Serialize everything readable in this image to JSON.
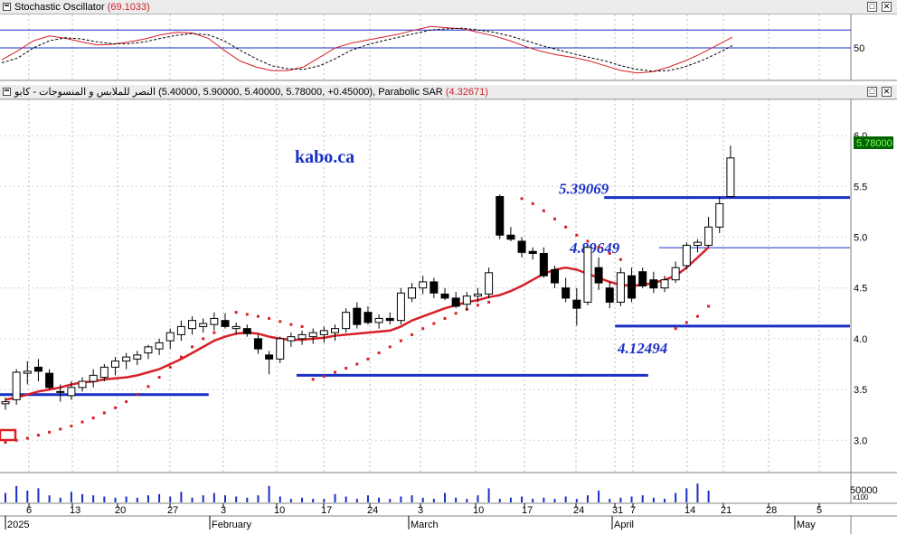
{
  "stoch_header": {
    "title": "Stochastic Oscillator",
    "value": "(69.1033)"
  },
  "price_header": {
    "name": "النصر للملابس و المنسوجات - كابو",
    "ohlc": "(5.40000, 5.90000, 5.40000, 5.78000, +0.45000),",
    "indicator": "Parabolic SAR",
    "indicator_value": "(4.32671)"
  },
  "watermark": "kabo.ca",
  "price_badge": "5.78000",
  "volume_axis": {
    "label": "50000",
    "multiplier": "x100"
  },
  "window_buttons": {
    "restore": "□",
    "close": "✕"
  },
  "colors": {
    "candle_outline": "#000000",
    "ma": "#d81f26",
    "sar": "#d81f26",
    "level": "#1a2fc4",
    "badge_bg": "#006400",
    "badge_fg": "#7dff5a"
  },
  "chart_data": [
    {
      "type": "line",
      "title": "Stochastic Oscillator",
      "levels": [
        80,
        50
      ],
      "y_tick_labels": [
        "50"
      ],
      "series": [
        {
          "name": "%K",
          "values": [
            30,
            45,
            62,
            70,
            66,
            60,
            55,
            56,
            60,
            65,
            72,
            76,
            75,
            66,
            46,
            28,
            18,
            12,
            12,
            18,
            34,
            50,
            58,
            63,
            68,
            73,
            80,
            86,
            84,
            82,
            76,
            70,
            62,
            52,
            44,
            38,
            34,
            28,
            20,
            12,
            8,
            10,
            18,
            28,
            40,
            54,
            68
          ]
        },
        {
          "name": "%D",
          "values": [
            25,
            33,
            50,
            62,
            67,
            65,
            60,
            57,
            57,
            60,
            66,
            71,
            74,
            72,
            62,
            46,
            32,
            20,
            15,
            14,
            20,
            32,
            46,
            55,
            62,
            68,
            74,
            80,
            82,
            83,
            80,
            76,
            70,
            62,
            54,
            47,
            40,
            34,
            28,
            20,
            14,
            11,
            12,
            18,
            28,
            40,
            54
          ]
        }
      ]
    },
    {
      "type": "candlestick",
      "title": "النصر للملابس و المنسوجات - كابو",
      "y_range": [
        2.62,
        6.25
      ],
      "y_ticks": [
        3.0,
        3.5,
        4.0,
        4.5,
        5.0,
        5.5,
        6.0
      ],
      "x_tick_labels": [
        "6",
        "13",
        "20",
        "27",
        "3",
        "10",
        "17",
        "24",
        "3",
        "10",
        "17",
        "24",
        "31",
        "7",
        "14",
        "21",
        "28",
        "5"
      ],
      "month_labels": [
        "2025",
        "February",
        "March",
        "April",
        "May"
      ],
      "candles": [
        {
          "o": 3.36,
          "h": 3.42,
          "l": 3.3,
          "c": 3.38
        },
        {
          "o": 3.4,
          "h": 3.7,
          "l": 3.35,
          "c": 3.67
        },
        {
          "o": 3.66,
          "h": 3.78,
          "l": 3.55,
          "c": 3.68
        },
        {
          "o": 3.72,
          "h": 3.8,
          "l": 3.58,
          "c": 3.68
        },
        {
          "o": 3.66,
          "h": 3.7,
          "l": 3.5,
          "c": 3.52
        },
        {
          "o": 3.48,
          "h": 3.55,
          "l": 3.38,
          "c": 3.48
        },
        {
          "o": 3.44,
          "h": 3.58,
          "l": 3.4,
          "c": 3.52
        },
        {
          "o": 3.52,
          "h": 3.62,
          "l": 3.48,
          "c": 3.58
        },
        {
          "o": 3.58,
          "h": 3.7,
          "l": 3.52,
          "c": 3.64
        },
        {
          "o": 3.62,
          "h": 3.75,
          "l": 3.58,
          "c": 3.72
        },
        {
          "o": 3.72,
          "h": 3.82,
          "l": 3.64,
          "c": 3.78
        },
        {
          "o": 3.78,
          "h": 3.86,
          "l": 3.7,
          "c": 3.82
        },
        {
          "o": 3.8,
          "h": 3.88,
          "l": 3.74,
          "c": 3.84
        },
        {
          "o": 3.86,
          "h": 3.94,
          "l": 3.8,
          "c": 3.92
        },
        {
          "o": 3.9,
          "h": 4.0,
          "l": 3.84,
          "c": 3.96
        },
        {
          "o": 3.98,
          "h": 4.1,
          "l": 3.9,
          "c": 4.06
        },
        {
          "o": 4.04,
          "h": 4.18,
          "l": 3.98,
          "c": 4.12
        },
        {
          "o": 4.1,
          "h": 4.22,
          "l": 4.04,
          "c": 4.18
        },
        {
          "o": 4.12,
          "h": 4.2,
          "l": 4.06,
          "c": 4.15
        },
        {
          "o": 4.14,
          "h": 4.26,
          "l": 4.08,
          "c": 4.2
        },
        {
          "o": 4.18,
          "h": 4.25,
          "l": 4.1,
          "c": 4.12
        },
        {
          "o": 4.1,
          "h": 4.16,
          "l": 4.04,
          "c": 4.12
        },
        {
          "o": 4.1,
          "h": 4.14,
          "l": 4.02,
          "c": 4.05
        },
        {
          "o": 4.0,
          "h": 4.04,
          "l": 3.85,
          "c": 3.9
        },
        {
          "o": 3.84,
          "h": 3.88,
          "l": 3.65,
          "c": 3.8
        },
        {
          "o": 3.8,
          "h": 4.02,
          "l": 3.76,
          "c": 4.0
        },
        {
          "o": 3.98,
          "h": 4.06,
          "l": 3.92,
          "c": 4.02
        },
        {
          "o": 4.0,
          "h": 4.08,
          "l": 3.94,
          "c": 4.04
        },
        {
          "o": 4.02,
          "h": 4.1,
          "l": 3.95,
          "c": 4.06
        },
        {
          "o": 4.04,
          "h": 4.12,
          "l": 3.96,
          "c": 4.08
        },
        {
          "o": 4.06,
          "h": 4.14,
          "l": 3.98,
          "c": 4.1
        },
        {
          "o": 4.1,
          "h": 4.3,
          "l": 4.06,
          "c": 4.26
        },
        {
          "o": 4.3,
          "h": 4.36,
          "l": 4.1,
          "c": 4.14
        },
        {
          "o": 4.26,
          "h": 4.32,
          "l": 4.14,
          "c": 4.16
        },
        {
          "o": 4.16,
          "h": 4.24,
          "l": 4.1,
          "c": 4.2
        },
        {
          "o": 4.2,
          "h": 4.26,
          "l": 4.14,
          "c": 4.18
        },
        {
          "o": 4.18,
          "h": 4.5,
          "l": 4.14,
          "c": 4.45
        },
        {
          "o": 4.4,
          "h": 4.55,
          "l": 4.36,
          "c": 4.5
        },
        {
          "o": 4.5,
          "h": 4.62,
          "l": 4.44,
          "c": 4.56
        },
        {
          "o": 4.56,
          "h": 4.6,
          "l": 4.4,
          "c": 4.45
        },
        {
          "o": 4.44,
          "h": 4.5,
          "l": 4.38,
          "c": 4.4
        },
        {
          "o": 4.4,
          "h": 4.46,
          "l": 4.3,
          "c": 4.32
        },
        {
          "o": 4.34,
          "h": 4.46,
          "l": 4.28,
          "c": 4.42
        },
        {
          "o": 4.42,
          "h": 4.5,
          "l": 4.36,
          "c": 4.44
        },
        {
          "o": 4.44,
          "h": 4.7,
          "l": 4.4,
          "c": 4.65
        },
        {
          "o": 5.4,
          "h": 5.42,
          "l": 4.98,
          "c": 5.02
        },
        {
          "o": 5.02,
          "h": 5.1,
          "l": 4.96,
          "c": 4.98
        },
        {
          "o": 4.96,
          "h": 5.0,
          "l": 4.8,
          "c": 4.85
        },
        {
          "o": 4.86,
          "h": 4.9,
          "l": 4.78,
          "c": 4.84
        },
        {
          "o": 4.84,
          "h": 4.9,
          "l": 4.6,
          "c": 4.62
        },
        {
          "o": 4.68,
          "h": 4.72,
          "l": 4.5,
          "c": 4.55
        },
        {
          "o": 4.5,
          "h": 4.6,
          "l": 4.36,
          "c": 4.4
        },
        {
          "o": 4.38,
          "h": 4.5,
          "l": 4.13,
          "c": 4.3
        },
        {
          "o": 4.36,
          "h": 4.9,
          "l": 4.33,
          "c": 4.9
        },
        {
          "o": 4.7,
          "h": 4.8,
          "l": 4.48,
          "c": 4.55
        },
        {
          "o": 4.5,
          "h": 4.56,
          "l": 4.3,
          "c": 4.36
        },
        {
          "o": 4.36,
          "h": 4.7,
          "l": 4.32,
          "c": 4.65
        },
        {
          "o": 4.62,
          "h": 4.7,
          "l": 4.36,
          "c": 4.4
        },
        {
          "o": 4.66,
          "h": 4.7,
          "l": 4.5,
          "c": 4.52
        },
        {
          "o": 4.58,
          "h": 4.66,
          "l": 4.45,
          "c": 4.5
        },
        {
          "o": 4.5,
          "h": 4.62,
          "l": 4.46,
          "c": 4.58
        },
        {
          "o": 4.58,
          "h": 4.76,
          "l": 4.55,
          "c": 4.7
        },
        {
          "o": 4.72,
          "h": 4.95,
          "l": 4.68,
          "c": 4.92
        },
        {
          "o": 4.92,
          "h": 4.98,
          "l": 4.85,
          "c": 4.95
        },
        {
          "o": 4.92,
          "h": 5.2,
          "l": 4.9,
          "c": 5.1
        },
        {
          "o": 5.1,
          "h": 5.4,
          "l": 5.04,
          "c": 5.33
        },
        {
          "o": 5.4,
          "h": 5.9,
          "l": 5.4,
          "c": 5.78
        }
      ],
      "moving_average": [
        3.4,
        3.42,
        3.45,
        3.48,
        3.5,
        3.52,
        3.55,
        3.57,
        3.58,
        3.6,
        3.61,
        3.62,
        3.64,
        3.67,
        3.7,
        3.75,
        3.8,
        3.86,
        3.92,
        3.98,
        4.02,
        4.05,
        4.06,
        4.05,
        4.02,
        4.0,
        3.99,
        3.99,
        4.0,
        4.01,
        4.03,
        4.04,
        4.05,
        4.06,
        4.07,
        4.08,
        4.12,
        4.18,
        4.22,
        4.26,
        4.3,
        4.33,
        4.36,
        4.38,
        4.41,
        4.43,
        4.47,
        4.52,
        4.58,
        4.64,
        4.68,
        4.7,
        4.68,
        4.64,
        4.6,
        4.56,
        4.53,
        4.52,
        4.53,
        4.55,
        4.58,
        4.62,
        4.7,
        4.8,
        4.9
      ],
      "parabolic_sar": [
        {
          "i": 0,
          "v": 2.98
        },
        {
          "i": 1,
          "v": 3.0
        },
        {
          "i": 2,
          "v": 3.02
        },
        {
          "i": 3,
          "v": 3.05
        },
        {
          "i": 4,
          "v": 3.08
        },
        {
          "i": 5,
          "v": 3.11
        },
        {
          "i": 6,
          "v": 3.14
        },
        {
          "i": 7,
          "v": 3.18
        },
        {
          "i": 8,
          "v": 3.22
        },
        {
          "i": 9,
          "v": 3.27
        },
        {
          "i": 10,
          "v": 3.32
        },
        {
          "i": 11,
          "v": 3.38
        },
        {
          "i": 12,
          "v": 3.45
        },
        {
          "i": 13,
          "v": 3.53
        },
        {
          "i": 14,
          "v": 3.62
        },
        {
          "i": 15,
          "v": 3.72
        },
        {
          "i": 16,
          "v": 3.82
        },
        {
          "i": 17,
          "v": 3.92
        },
        {
          "i": 18,
          "v": 4.0
        },
        {
          "i": 19,
          "v": 4.06
        },
        {
          "i": 21,
          "v": 4.26
        },
        {
          "i": 22,
          "v": 4.24
        },
        {
          "i": 23,
          "v": 4.22
        },
        {
          "i": 24,
          "v": 4.2
        },
        {
          "i": 25,
          "v": 4.17
        },
        {
          "i": 26,
          "v": 4.14
        },
        {
          "i": 27,
          "v": 4.12
        },
        {
          "i": 28,
          "v": 3.6
        },
        {
          "i": 29,
          "v": 3.63
        },
        {
          "i": 30,
          "v": 3.67
        },
        {
          "i": 31,
          "v": 3.71
        },
        {
          "i": 32,
          "v": 3.75
        },
        {
          "i": 33,
          "v": 3.8
        },
        {
          "i": 34,
          "v": 3.86
        },
        {
          "i": 35,
          "v": 3.92
        },
        {
          "i": 36,
          "v": 3.98
        },
        {
          "i": 37,
          "v": 4.04
        },
        {
          "i": 38,
          "v": 4.1
        },
        {
          "i": 39,
          "v": 4.15
        },
        {
          "i": 40,
          "v": 4.2
        },
        {
          "i": 41,
          "v": 4.25
        },
        {
          "i": 42,
          "v": 4.29
        },
        {
          "i": 43,
          "v": 4.33
        },
        {
          "i": 44,
          "v": 4.36
        },
        {
          "i": 47,
          "v": 5.38
        },
        {
          "i": 48,
          "v": 5.33
        },
        {
          "i": 49,
          "v": 5.26
        },
        {
          "i": 50,
          "v": 5.18
        },
        {
          "i": 51,
          "v": 5.1
        },
        {
          "i": 52,
          "v": 5.02
        },
        {
          "i": 53,
          "v": 4.96
        },
        {
          "i": 54,
          "v": 4.9
        },
        {
          "i": 55,
          "v": 4.84
        },
        {
          "i": 56,
          "v": 4.78
        },
        {
          "i": 61,
          "v": 4.1
        },
        {
          "i": 62,
          "v": 4.16
        },
        {
          "i": 63,
          "v": 4.22
        },
        {
          "i": 64,
          "v": 4.32
        }
      ],
      "levels": [
        {
          "value": 3.45,
          "i0": -0.5,
          "i1": 18.5,
          "label": ""
        },
        {
          "value": 3.64,
          "i0": 26.5,
          "i1": 58.5,
          "label": ""
        },
        {
          "value": 5.39069,
          "i0": 54.5,
          "i1": 86,
          "label": "5.39069"
        },
        {
          "value": 4.89649,
          "i0": 59.5,
          "i1": 79,
          "label": "4.89649"
        },
        {
          "value": 4.12494,
          "i0": 55.5,
          "i1": 86.5,
          "label": "4.12494"
        }
      ]
    },
    {
      "type": "bar",
      "title": "Volume",
      "values": [
        8,
        14,
        10,
        12,
        6,
        4,
        9,
        7,
        6,
        5,
        4,
        5,
        4,
        6,
        7,
        5,
        9,
        4,
        6,
        8,
        6,
        5,
        4,
        6,
        14,
        5,
        3,
        4,
        3,
        3,
        7,
        5,
        3,
        6,
        4,
        3,
        5,
        6,
        4,
        3,
        8,
        4,
        3,
        6,
        12,
        3,
        4,
        5,
        3,
        4,
        3,
        5,
        3,
        6,
        10,
        3,
        4,
        5,
        6,
        4,
        3,
        8,
        12,
        16,
        10
      ]
    }
  ]
}
